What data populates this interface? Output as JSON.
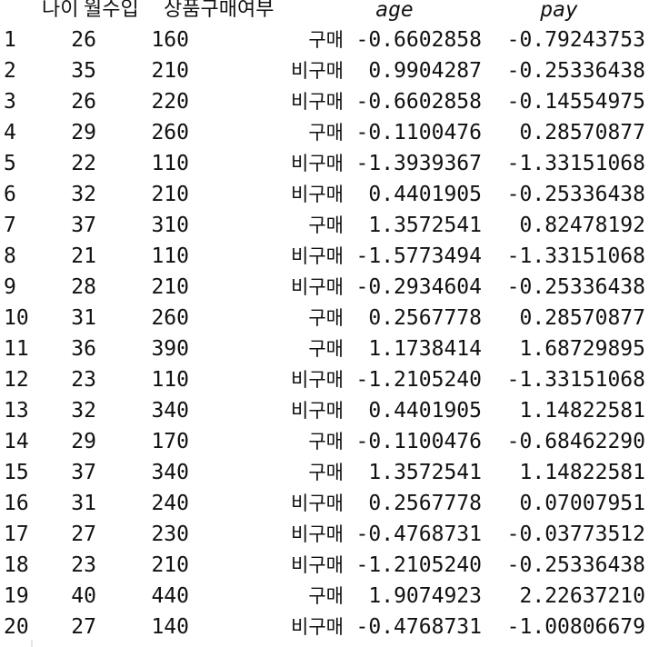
{
  "table": {
    "headers": {
      "age_raw": "나이",
      "income": "월수입",
      "purchase": "상품구매여부",
      "age_scaled": "age",
      "pay_scaled": "pay"
    },
    "rows": [
      {
        "idx": "1",
        "age": "26",
        "income": "160",
        "purchase": "구매",
        "age_scaled": "-0.6602858",
        "pay_scaled": "-0.79243753"
      },
      {
        "idx": "2",
        "age": "35",
        "income": "210",
        "purchase": "비구매",
        "age_scaled": "0.9904287",
        "pay_scaled": "-0.25336438"
      },
      {
        "idx": "3",
        "age": "26",
        "income": "220",
        "purchase": "비구매",
        "age_scaled": "-0.6602858",
        "pay_scaled": "-0.14554975"
      },
      {
        "idx": "4",
        "age": "29",
        "income": "260",
        "purchase": "구매",
        "age_scaled": "-0.1100476",
        "pay_scaled": "0.28570877"
      },
      {
        "idx": "5",
        "age": "22",
        "income": "110",
        "purchase": "비구매",
        "age_scaled": "-1.3939367",
        "pay_scaled": "-1.33151068"
      },
      {
        "idx": "6",
        "age": "32",
        "income": "210",
        "purchase": "비구매",
        "age_scaled": "0.4401905",
        "pay_scaled": "-0.25336438"
      },
      {
        "idx": "7",
        "age": "37",
        "income": "310",
        "purchase": "구매",
        "age_scaled": "1.3572541",
        "pay_scaled": "0.82478192"
      },
      {
        "idx": "8",
        "age": "21",
        "income": "110",
        "purchase": "비구매",
        "age_scaled": "-1.5773494",
        "pay_scaled": "-1.33151068"
      },
      {
        "idx": "9",
        "age": "28",
        "income": "210",
        "purchase": "비구매",
        "age_scaled": "-0.2934604",
        "pay_scaled": "-0.25336438"
      },
      {
        "idx": "10",
        "age": "31",
        "income": "260",
        "purchase": "구매",
        "age_scaled": "0.2567778",
        "pay_scaled": "0.28570877"
      },
      {
        "idx": "11",
        "age": "36",
        "income": "390",
        "purchase": "구매",
        "age_scaled": "1.1738414",
        "pay_scaled": "1.68729895"
      },
      {
        "idx": "12",
        "age": "23",
        "income": "110",
        "purchase": "비구매",
        "age_scaled": "-1.2105240",
        "pay_scaled": "-1.33151068"
      },
      {
        "idx": "13",
        "age": "32",
        "income": "340",
        "purchase": "비구매",
        "age_scaled": "0.4401905",
        "pay_scaled": "1.14822581"
      },
      {
        "idx": "14",
        "age": "29",
        "income": "170",
        "purchase": "구매",
        "age_scaled": "-0.1100476",
        "pay_scaled": "-0.68462290"
      },
      {
        "idx": "15",
        "age": "37",
        "income": "340",
        "purchase": "구매",
        "age_scaled": "1.3572541",
        "pay_scaled": "1.14822581"
      },
      {
        "idx": "16",
        "age": "31",
        "income": "240",
        "purchase": "비구매",
        "age_scaled": "0.2567778",
        "pay_scaled": "0.07007951"
      },
      {
        "idx": "17",
        "age": "27",
        "income": "230",
        "purchase": "비구매",
        "age_scaled": "-0.4768731",
        "pay_scaled": "-0.03773512"
      },
      {
        "idx": "18",
        "age": "23",
        "income": "210",
        "purchase": "비구매",
        "age_scaled": "-1.2105240",
        "pay_scaled": "-0.25336438"
      },
      {
        "idx": "19",
        "age": "40",
        "income": "440",
        "purchase": "구매",
        "age_scaled": "1.9074923",
        "pay_scaled": "2.22637210"
      },
      {
        "idx": "20",
        "age": "27",
        "income": "140",
        "purchase": "비구매",
        "age_scaled": "-0.4768731",
        "pay_scaled": "-1.00806679"
      }
    ]
  }
}
